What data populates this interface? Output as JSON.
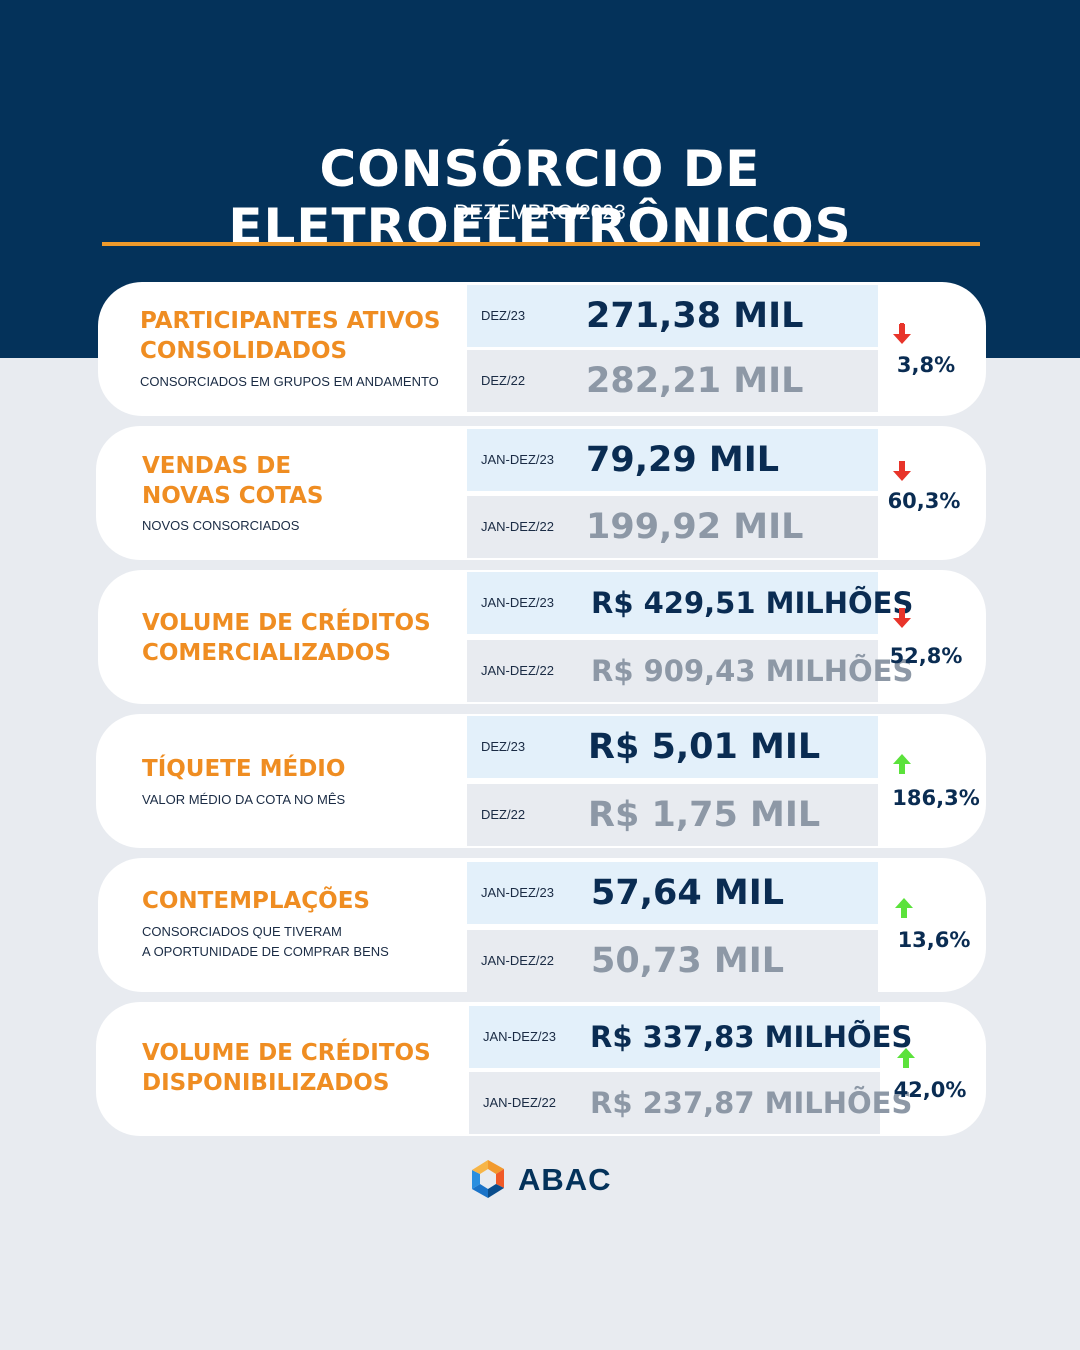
{
  "header": {
    "title": "CONSÓRCIO DE ELETROELETRÔNICOS",
    "subtitle": "DEZEMBRO/2023"
  },
  "colors": {
    "navy": "#04325a",
    "orange": "#ef8d22",
    "down": "#e8342a",
    "up": "#5be23b"
  },
  "metrics": [
    {
      "label_line1": "PARTICIPANTES ATIVOS",
      "label_line2": "CONSOLIDADOS",
      "desc_line1": "CONSORCIADOS EM GRUPOS EM ANDAMENTO",
      "desc_line2": "",
      "current_period": "DEZ/23",
      "current_value": "271,38 MIL",
      "previous_period": "DEZ/22",
      "previous_value": "282,21 MIL",
      "change": "3,8%",
      "direction": "down"
    },
    {
      "label_line1": "VENDAS DE",
      "label_line2": "NOVAS COTAS",
      "desc_line1": "NOVOS CONSORCIADOS",
      "desc_line2": "",
      "current_period": "JAN-DEZ/23",
      "current_value": "79,29 MIL",
      "previous_period": "JAN-DEZ/22",
      "previous_value": "199,92 MIL",
      "change": "60,3%",
      "direction": "down"
    },
    {
      "label_line1": "VOLUME DE CRÉDITOS",
      "label_line2": "COMERCIALIZADOS",
      "desc_line1": "",
      "desc_line2": "",
      "current_period": "JAN-DEZ/23",
      "current_value": "R$ 429,51 MILHÕES",
      "previous_period": "JAN-DEZ/22",
      "previous_value": "R$ 909,43 MILHÕES",
      "change": "52,8%",
      "direction": "down"
    },
    {
      "label_line1": "TÍQUETE MÉDIO",
      "label_line2": "",
      "desc_line1": "VALOR MÉDIO DA COTA NO MÊS",
      "desc_line2": "",
      "current_period": "DEZ/23",
      "current_value": "R$ 5,01 MIL",
      "previous_period": "DEZ/22",
      "previous_value": "R$ 1,75 MIL",
      "change": "186,3%",
      "direction": "up"
    },
    {
      "label_line1": "CONTEMPLAÇÕES",
      "label_line2": "",
      "desc_line1": "CONSORCIADOS QUE TIVERAM",
      "desc_line2": "A OPORTUNIDADE DE COMPRAR BENS",
      "current_period": "JAN-DEZ/23",
      "current_value": "57,64 MIL",
      "previous_period": "JAN-DEZ/22",
      "previous_value": "50,73 MIL",
      "change": "13,6%",
      "direction": "up"
    },
    {
      "label_line1": "VOLUME DE CRÉDITOS",
      "label_line2": "DISPONIBILIZADOS",
      "desc_line1": "",
      "desc_line2": "",
      "current_period": "JAN-DEZ/23",
      "current_value": "R$ 337,83 MILHÕES",
      "previous_period": "JAN-DEZ/22",
      "previous_value": "R$ 237,87 MILHÕES",
      "change": "42,0%",
      "direction": "up"
    }
  ],
  "footer": {
    "logo_text": "ABAC",
    "logo_icon": "abac-logo-icon"
  }
}
